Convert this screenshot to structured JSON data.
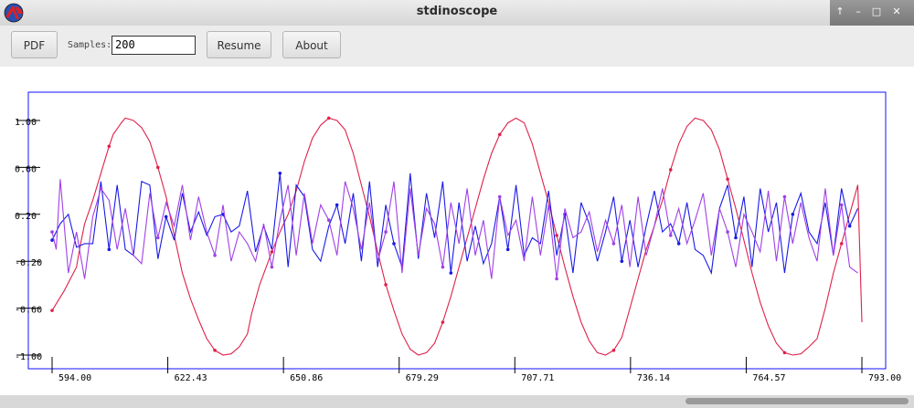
{
  "window": {
    "title": "stdinoscope"
  },
  "toolbar": {
    "pdf_label": "PDF",
    "samples_label": "Samples:",
    "samples_value": "200",
    "resume_label": "Resume",
    "about_label": "About"
  },
  "chart_data": {
    "type": "line",
    "xlim": [
      594.0,
      793.0
    ],
    "ylim": [
      -1.0,
      1.0
    ],
    "x_ticks": [
      "594.00",
      "622.43",
      "650.86",
      "679.29",
      "707.71",
      "736.14",
      "764.57",
      "793.00"
    ],
    "y_ticks": [
      "1.00",
      "0.60",
      "0.20",
      "-0.20",
      "-0.60",
      "-1.00"
    ],
    "colors": {
      "frame": "#1010ff",
      "sine": "#e0204a",
      "blue": "#1a1ae6",
      "purple": "#a040e6"
    },
    "series": [
      {
        "color": "#e0204a",
        "points": [
          [
            594,
            -0.62
          ],
          [
            597,
            -0.45
          ],
          [
            600,
            -0.25
          ],
          [
            601,
            -0.05
          ],
          [
            602,
            0.12
          ],
          [
            604,
            0.32
          ],
          [
            606,
            0.55
          ],
          [
            608,
            0.78
          ],
          [
            609,
            0.88
          ],
          [
            611,
            0.98
          ],
          [
            612,
            1.02
          ],
          [
            614,
            1.0
          ],
          [
            616,
            0.94
          ],
          [
            618,
            0.82
          ],
          [
            620,
            0.6
          ],
          [
            622,
            0.35
          ],
          [
            624,
            0.02
          ],
          [
            626,
            -0.3
          ],
          [
            628,
            -0.52
          ],
          [
            630,
            -0.7
          ],
          [
            632,
            -0.86
          ],
          [
            634,
            -0.96
          ],
          [
            636,
            -1.0
          ],
          [
            638,
            -0.99
          ],
          [
            640,
            -0.93
          ],
          [
            642,
            -0.82
          ],
          [
            643,
            -0.65
          ],
          [
            645,
            -0.4
          ],
          [
            648,
            -0.12
          ],
          [
            650,
            0.05
          ],
          [
            652,
            0.2
          ],
          [
            654,
            0.4
          ],
          [
            656,
            0.65
          ],
          [
            658,
            0.85
          ],
          [
            660,
            0.96
          ],
          [
            662,
            1.02
          ],
          [
            664,
            1.0
          ],
          [
            666,
            0.92
          ],
          [
            668,
            0.72
          ],
          [
            670,
            0.45
          ],
          [
            672,
            0.18
          ],
          [
            674,
            -0.12
          ],
          [
            676,
            -0.4
          ],
          [
            678,
            -0.62
          ],
          [
            680,
            -0.82
          ],
          [
            682,
            -0.95
          ],
          [
            684,
            -1.0
          ],
          [
            686,
            -0.98
          ],
          [
            688,
            -0.9
          ],
          [
            690,
            -0.72
          ],
          [
            692,
            -0.5
          ],
          [
            694,
            -0.25
          ],
          [
            696,
            0.0
          ],
          [
            698,
            0.25
          ],
          [
            700,
            0.5
          ],
          [
            702,
            0.72
          ],
          [
            704,
            0.88
          ],
          [
            706,
            0.98
          ],
          [
            708,
            1.02
          ],
          [
            710,
            0.98
          ],
          [
            712,
            0.8
          ],
          [
            714,
            0.55
          ],
          [
            716,
            0.3
          ],
          [
            718,
            0.02
          ],
          [
            720,
            -0.25
          ],
          [
            722,
            -0.5
          ],
          [
            724,
            -0.72
          ],
          [
            726,
            -0.88
          ],
          [
            728,
            -0.98
          ],
          [
            730,
            -1.0
          ],
          [
            732,
            -0.96
          ],
          [
            734,
            -0.85
          ],
          [
            736,
            -0.6
          ],
          [
            738,
            -0.35
          ],
          [
            740,
            -0.1
          ],
          [
            742,
            0.1
          ],
          [
            744,
            0.32
          ],
          [
            746,
            0.58
          ],
          [
            748,
            0.8
          ],
          [
            750,
            0.95
          ],
          [
            752,
            1.02
          ],
          [
            754,
            1.0
          ],
          [
            756,
            0.92
          ],
          [
            758,
            0.75
          ],
          [
            760,
            0.5
          ],
          [
            762,
            0.25
          ],
          [
            764,
            -0.02
          ],
          [
            766,
            -0.3
          ],
          [
            768,
            -0.55
          ],
          [
            770,
            -0.75
          ],
          [
            772,
            -0.9
          ],
          [
            774,
            -0.98
          ],
          [
            776,
            -1.0
          ],
          [
            778,
            -0.99
          ],
          [
            780,
            -0.93
          ],
          [
            782,
            -0.86
          ],
          [
            784,
            -0.6
          ],
          [
            786,
            -0.3
          ],
          [
            788,
            -0.05
          ],
          [
            790,
            0.2
          ],
          [
            792,
            0.45
          ],
          [
            793,
            -0.72
          ]
        ]
      },
      {
        "color": "#1a1ae6",
        "points": [
          [
            594,
            -0.02
          ],
          [
            596,
            0.12
          ],
          [
            598,
            0.2
          ],
          [
            600,
            -0.08
          ],
          [
            602,
            -0.05
          ],
          [
            604,
            -0.05
          ],
          [
            606,
            0.48
          ],
          [
            608,
            -0.1
          ],
          [
            610,
            0.45
          ],
          [
            612,
            -0.1
          ],
          [
            614,
            -0.15
          ],
          [
            616,
            0.48
          ],
          [
            618,
            0.45
          ],
          [
            620,
            -0.18
          ],
          [
            622,
            0.18
          ],
          [
            624,
            -0.02
          ],
          [
            626,
            0.38
          ],
          [
            628,
            0.05
          ],
          [
            630,
            0.22
          ],
          [
            632,
            0.02
          ],
          [
            634,
            0.18
          ],
          [
            636,
            0.2
          ],
          [
            638,
            0.05
          ],
          [
            640,
            0.1
          ],
          [
            642,
            0.4
          ],
          [
            644,
            -0.12
          ],
          [
            646,
            0.1
          ],
          [
            648,
            -0.1
          ],
          [
            650,
            0.55
          ],
          [
            652,
            -0.25
          ],
          [
            654,
            0.45
          ],
          [
            656,
            0.35
          ],
          [
            658,
            -0.1
          ],
          [
            660,
            -0.2
          ],
          [
            662,
            0.1
          ],
          [
            664,
            0.28
          ],
          [
            666,
            -0.05
          ],
          [
            668,
            0.38
          ],
          [
            670,
            -0.2
          ],
          [
            672,
            0.48
          ],
          [
            674,
            -0.25
          ],
          [
            676,
            0.28
          ],
          [
            678,
            -0.05
          ],
          [
            680,
            -0.25
          ],
          [
            682,
            0.55
          ],
          [
            684,
            -0.18
          ],
          [
            686,
            0.38
          ],
          [
            688,
            0.0
          ],
          [
            690,
            0.48
          ],
          [
            692,
            -0.3
          ],
          [
            694,
            0.3
          ],
          [
            696,
            -0.2
          ],
          [
            698,
            0.1
          ],
          [
            700,
            -0.22
          ],
          [
            702,
            -0.05
          ],
          [
            704,
            0.35
          ],
          [
            706,
            -0.1
          ],
          [
            708,
            0.45
          ],
          [
            710,
            -0.15
          ],
          [
            712,
            0.0
          ],
          [
            714,
            -0.05
          ],
          [
            716,
            0.4
          ],
          [
            718,
            -0.15
          ],
          [
            720,
            0.2
          ],
          [
            722,
            -0.3
          ],
          [
            724,
            0.3
          ],
          [
            726,
            0.12
          ],
          [
            728,
            -0.2
          ],
          [
            730,
            0.05
          ],
          [
            732,
            0.35
          ],
          [
            734,
            -0.2
          ],
          [
            736,
            0.15
          ],
          [
            738,
            -0.25
          ],
          [
            740,
            0.1
          ],
          [
            742,
            0.4
          ],
          [
            744,
            0.05
          ],
          [
            746,
            0.12
          ],
          [
            748,
            -0.05
          ],
          [
            750,
            0.3
          ],
          [
            752,
            -0.1
          ],
          [
            754,
            -0.15
          ],
          [
            756,
            -0.3
          ],
          [
            758,
            0.25
          ],
          [
            760,
            0.45
          ],
          [
            762,
            0.0
          ],
          [
            764,
            0.35
          ],
          [
            766,
            -0.25
          ],
          [
            768,
            0.42
          ],
          [
            770,
            0.05
          ],
          [
            772,
            0.3
          ],
          [
            774,
            -0.3
          ],
          [
            776,
            0.2
          ],
          [
            778,
            0.38
          ],
          [
            780,
            0.05
          ],
          [
            782,
            -0.05
          ],
          [
            784,
            0.3
          ],
          [
            786,
            -0.15
          ],
          [
            788,
            0.42
          ],
          [
            790,
            0.1
          ],
          [
            792,
            0.25
          ]
        ]
      },
      {
        "color": "#a040e6",
        "points": [
          [
            594,
            0.05
          ],
          [
            595,
            -0.1
          ],
          [
            596,
            0.5
          ],
          [
            598,
            -0.3
          ],
          [
            600,
            0.05
          ],
          [
            602,
            -0.35
          ],
          [
            604,
            0.18
          ],
          [
            606,
            0.42
          ],
          [
            608,
            0.32
          ],
          [
            610,
            -0.1
          ],
          [
            612,
            0.25
          ],
          [
            614,
            -0.15
          ],
          [
            616,
            -0.22
          ],
          [
            618,
            0.38
          ],
          [
            620,
            0.0
          ],
          [
            622,
            0.3
          ],
          [
            624,
            0.1
          ],
          [
            626,
            0.45
          ],
          [
            628,
            -0.02
          ],
          [
            630,
            0.35
          ],
          [
            632,
            0.05
          ],
          [
            634,
            -0.15
          ],
          [
            636,
            0.28
          ],
          [
            638,
            -0.2
          ],
          [
            640,
            0.05
          ],
          [
            642,
            -0.05
          ],
          [
            644,
            -0.2
          ],
          [
            646,
            0.12
          ],
          [
            648,
            -0.25
          ],
          [
            650,
            0.15
          ],
          [
            652,
            0.45
          ],
          [
            654,
            -0.15
          ],
          [
            656,
            0.38
          ],
          [
            658,
            -0.05
          ],
          [
            660,
            0.28
          ],
          [
            662,
            0.15
          ],
          [
            664,
            -0.15
          ],
          [
            666,
            0.48
          ],
          [
            668,
            0.25
          ],
          [
            670,
            -0.1
          ],
          [
            672,
            0.3
          ],
          [
            674,
            -0.2
          ],
          [
            676,
            0.05
          ],
          [
            678,
            0.48
          ],
          [
            680,
            -0.3
          ],
          [
            682,
            0.42
          ],
          [
            684,
            -0.15
          ],
          [
            686,
            0.25
          ],
          [
            688,
            0.12
          ],
          [
            690,
            -0.25
          ],
          [
            692,
            0.3
          ],
          [
            694,
            -0.05
          ],
          [
            696,
            0.42
          ],
          [
            698,
            -0.15
          ],
          [
            700,
            0.15
          ],
          [
            702,
            -0.35
          ],
          [
            704,
            0.35
          ],
          [
            706,
            0.02
          ],
          [
            708,
            0.15
          ],
          [
            710,
            -0.2
          ],
          [
            712,
            0.35
          ],
          [
            714,
            -0.15
          ],
          [
            716,
            0.28
          ],
          [
            718,
            -0.35
          ],
          [
            720,
            0.25
          ],
          [
            722,
            0.0
          ],
          [
            724,
            0.05
          ],
          [
            726,
            0.22
          ],
          [
            728,
            -0.12
          ],
          [
            730,
            0.15
          ],
          [
            732,
            -0.05
          ],
          [
            734,
            0.28
          ],
          [
            736,
            -0.25
          ],
          [
            738,
            0.35
          ],
          [
            740,
            -0.15
          ],
          [
            742,
            0.1
          ],
          [
            744,
            0.42
          ],
          [
            746,
            0.02
          ],
          [
            748,
            0.25
          ],
          [
            750,
            -0.05
          ],
          [
            752,
            0.15
          ],
          [
            754,
            0.38
          ],
          [
            756,
            -0.15
          ],
          [
            758,
            0.25
          ],
          [
            760,
            0.05
          ],
          [
            762,
            -0.25
          ],
          [
            764,
            0.2
          ],
          [
            766,
            0.05
          ],
          [
            768,
            -0.12
          ],
          [
            770,
            0.4
          ],
          [
            772,
            -0.2
          ],
          [
            774,
            0.35
          ],
          [
            776,
            -0.05
          ],
          [
            778,
            0.3
          ],
          [
            780,
            0.0
          ],
          [
            782,
            -0.2
          ],
          [
            784,
            0.42
          ],
          [
            786,
            -0.15
          ],
          [
            788,
            0.28
          ],
          [
            790,
            -0.25
          ],
          [
            792,
            -0.3
          ]
        ]
      }
    ]
  }
}
